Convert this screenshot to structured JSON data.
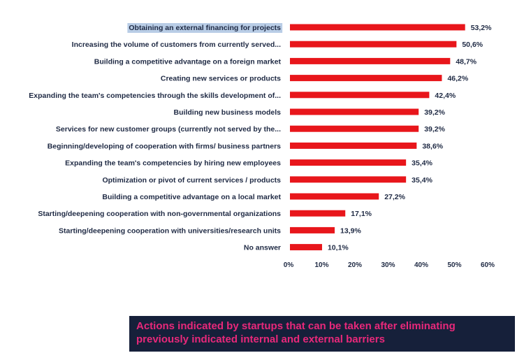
{
  "chart_data": {
    "type": "bar",
    "orientation": "horizontal",
    "categories": [
      "Obtaining an external financing for projects",
      "Increasing the volume of customers from currently served...",
      "Building a competitive advantage on a foreign market",
      "Creating new services or products",
      "Expanding the team's competencies through the skills development of...",
      "Building new business models",
      "Services for new customer groups (currently not served by the...",
      "Beginning/developing of cooperation with firms/ business partners",
      "Expanding the team's competencies by hiring new employees",
      "Optimization or pivot of current services / products",
      "Building a competitive advantage on a local market",
      "Starting/deepening cooperation with non-governmental organizations",
      "Starting/deepening cooperation with universities/research units",
      "No answer"
    ],
    "values": [
      53.2,
      50.6,
      48.7,
      46.2,
      42.4,
      39.2,
      39.2,
      38.6,
      35.4,
      35.4,
      27.2,
      17.1,
      13.9,
      10.1
    ],
    "value_labels": [
      "53,2%",
      "50,6%",
      "48,7%",
      "46,2%",
      "42,4%",
      "39,2%",
      "39,2%",
      "38,6%",
      "35,4%",
      "35,4%",
      "27,2%",
      "17,1%",
      "13,9%",
      "10,1%"
    ],
    "xlim": [
      0,
      60
    ],
    "x_ticks": [
      "0%",
      "10%",
      "20%",
      "30%",
      "40%",
      "50%",
      "60%"
    ],
    "grid": false,
    "highlighted_category_index": 0,
    "colors": {
      "bar": "#e8161b",
      "text": "#1f2a44",
      "highlight": "#b9cde6"
    }
  },
  "caption": {
    "text": "Actions indicated by startups that can be taken after eliminating previously indicated internal and external barriers",
    "background": "#16203a",
    "color": "#e8287a"
  }
}
